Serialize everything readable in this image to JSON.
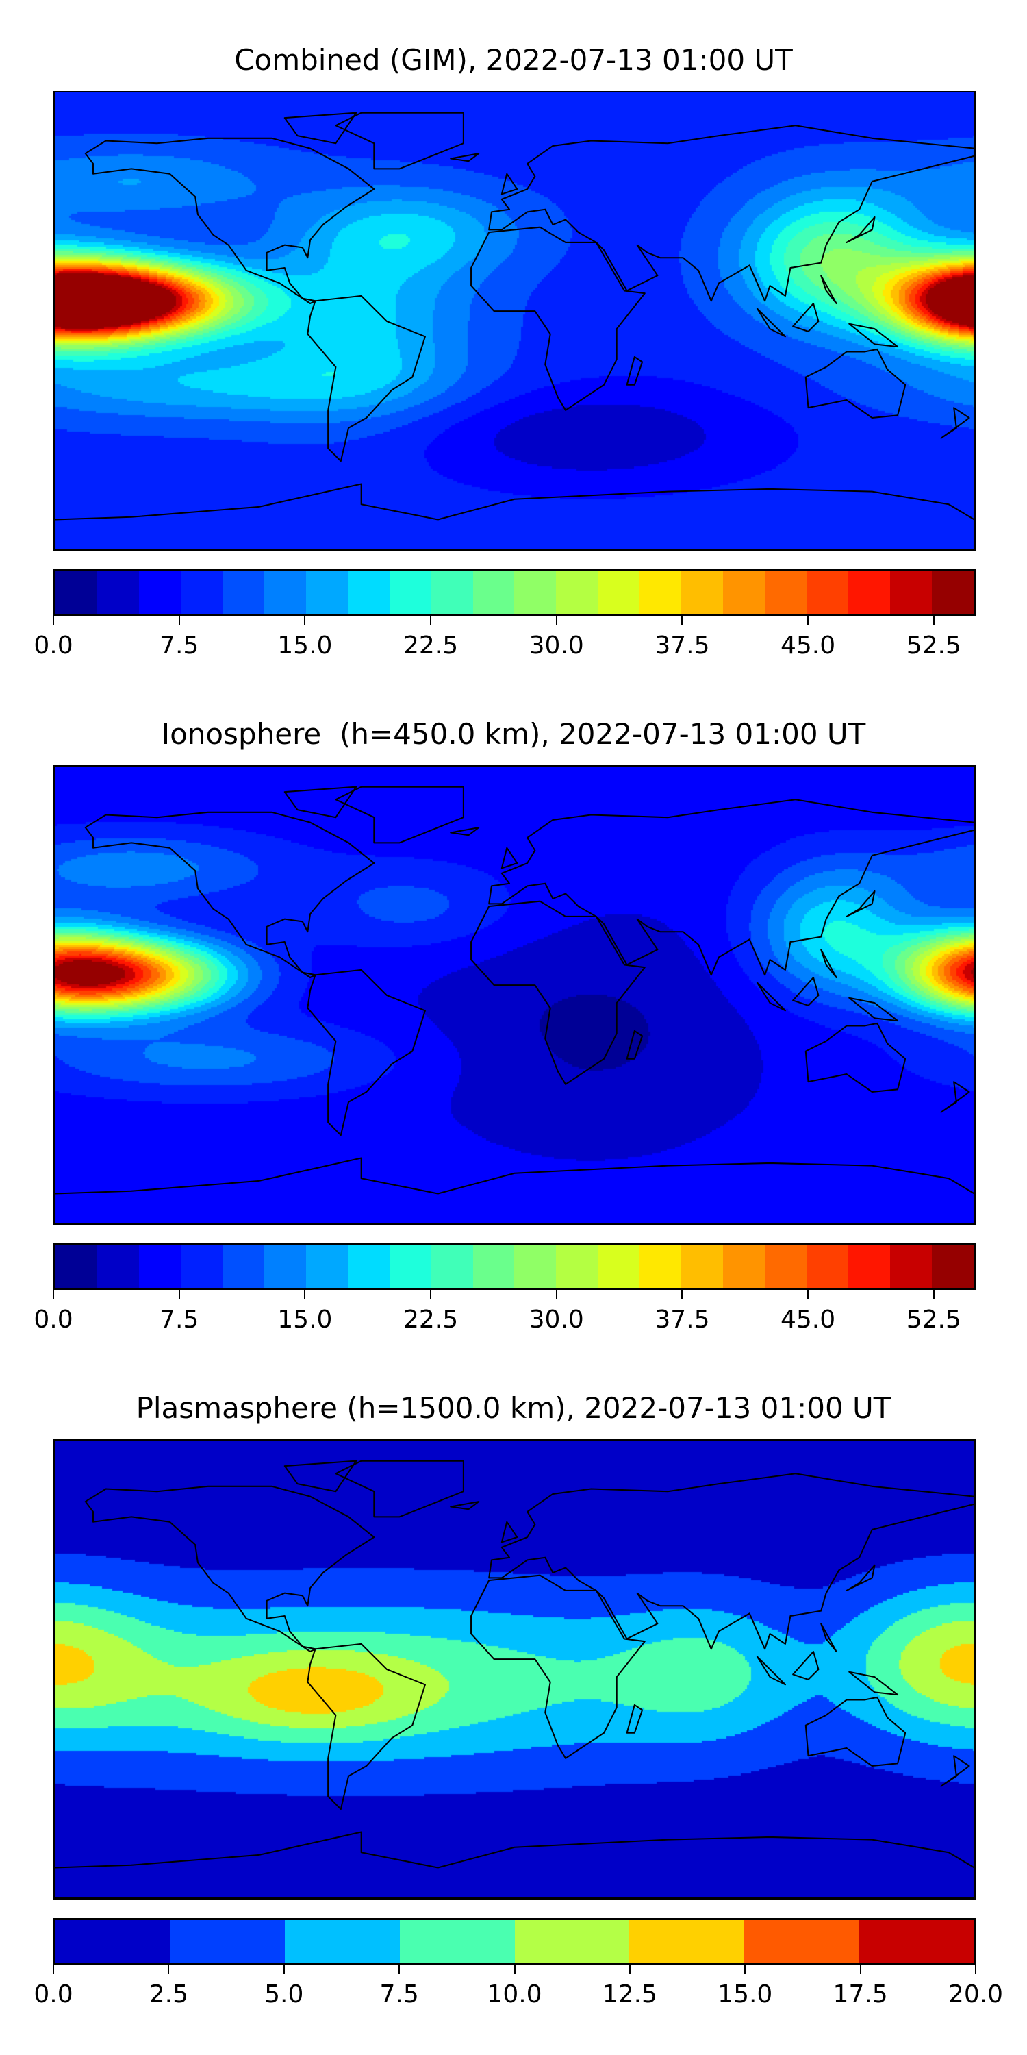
{
  "chart_data": [
    {
      "type": "heatmap",
      "title": "Combined (GIM), 2022-07-13 01:00 UT",
      "projection": "equirectangular",
      "lon_range": [
        -180,
        180
      ],
      "lat_range": [
        -90,
        90
      ],
      "colorbar": {
        "levels_min": 0,
        "levels_max": 55,
        "step": 2.5,
        "ticks": [
          "0.0",
          "7.5",
          "15.0",
          "22.5",
          "30.0",
          "37.5",
          "45.0",
          "52.5"
        ],
        "tick_values": [
          0,
          7.5,
          15,
          22.5,
          30,
          37.5,
          45,
          52.5
        ],
        "colors": [
          "#000096",
          "#0000c8",
          "#0000ff",
          "#0020ff",
          "#0050ff",
          "#0080ff",
          "#00a8ff",
          "#00dcff",
          "#1effdc",
          "#40ffb8",
          "#6aff8c",
          "#90ff66",
          "#b4ff42",
          "#d8ff1e",
          "#ffe800",
          "#ffbe00",
          "#ff9400",
          "#ff6a00",
          "#ff4000",
          "#ff1600",
          "#c80000",
          "#960000"
        ]
      },
      "field_model": {
        "base": 9,
        "components": [
          {
            "lon": -150,
            "lat": 8,
            "sx": 30,
            "sy": 10,
            "amp": 45
          },
          {
            "lon": 180,
            "lat": 8,
            "sx": 24,
            "sy": 12,
            "amp": 38
          },
          {
            "lon": 125,
            "lat": 25,
            "sx": 25,
            "sy": 18,
            "amp": 18
          },
          {
            "lon": -120,
            "lat": -25,
            "sx": 60,
            "sy": 10,
            "amp": 8
          },
          {
            "lon": -60,
            "lat": 0,
            "sx": 30,
            "sy": 25,
            "amp": 9
          },
          {
            "lon": -40,
            "lat": 35,
            "sx": 30,
            "sy": 12,
            "amp": 8
          },
          {
            "lon": 30,
            "lat": -45,
            "sx": 50,
            "sy": 15,
            "amp": -6
          },
          {
            "lon": -150,
            "lat": 55,
            "sx": 40,
            "sy": 10,
            "amp": 6
          }
        ]
      }
    },
    {
      "type": "heatmap",
      "title": "Ionosphere  (h=450.0 km), 2022-07-13 01:00 UT",
      "projection": "equirectangular",
      "lon_range": [
        -180,
        180
      ],
      "lat_range": [
        -90,
        90
      ],
      "colorbar": {
        "levels_min": 0,
        "levels_max": 55,
        "step": 2.5,
        "ticks": [
          "0.0",
          "7.5",
          "15.0",
          "22.5",
          "30.0",
          "37.5",
          "45.0",
          "52.5"
        ],
        "tick_values": [
          0,
          7.5,
          15,
          22.5,
          30,
          37.5,
          45,
          52.5
        ],
        "colors": [
          "#000096",
          "#0000c8",
          "#0000ff",
          "#0020ff",
          "#0050ff",
          "#0080ff",
          "#00a8ff",
          "#00dcff",
          "#1effdc",
          "#40ffb8",
          "#6aff8c",
          "#90ff66",
          "#b4ff42",
          "#d8ff1e",
          "#ffe800",
          "#ffbe00",
          "#ff9400",
          "#ff6a00",
          "#ff4000",
          "#ff1600",
          "#c80000",
          "#960000"
        ]
      },
      "field_model": {
        "base": 6,
        "components": [
          {
            "lon": -150,
            "lat": 8,
            "sx": 28,
            "sy": 10,
            "amp": 34
          },
          {
            "lon": 180,
            "lat": 10,
            "sx": 22,
            "sy": 12,
            "amp": 28
          },
          {
            "lon": 125,
            "lat": 25,
            "sx": 22,
            "sy": 18,
            "amp": 14
          },
          {
            "lon": -120,
            "lat": -25,
            "sx": 50,
            "sy": 10,
            "amp": 7
          },
          {
            "lon": -150,
            "lat": 50,
            "sx": 40,
            "sy": 10,
            "amp": 8
          },
          {
            "lon": 30,
            "lat": -15,
            "sx": 45,
            "sy": 30,
            "amp": -4
          },
          {
            "lon": -40,
            "lat": 35,
            "sx": 30,
            "sy": 12,
            "amp": 5
          }
        ]
      }
    },
    {
      "type": "heatmap",
      "title": "Plasmasphere (h=1500.0 km), 2022-07-13 01:00 UT",
      "projection": "equirectangular",
      "lon_range": [
        -180,
        180
      ],
      "lat_range": [
        -90,
        90
      ],
      "colorbar": {
        "levels_min": 0,
        "levels_max": 20,
        "step": 2.5,
        "ticks": [
          "0.0",
          "2.5",
          "5.0",
          "7.5",
          "10.0",
          "12.5",
          "15.0",
          "17.5",
          "20.0"
        ],
        "tick_values": [
          0,
          2.5,
          5,
          7.5,
          10,
          12.5,
          15,
          17.5,
          20
        ],
        "colors": [
          "#0000c8",
          "#0040ff",
          "#00c0ff",
          "#4affb0",
          "#b4ff46",
          "#ffd000",
          "#ff5a00",
          "#c80000"
        ]
      },
      "field_model": {
        "base": 1,
        "components": [
          {
            "lon": -60,
            "lat": -5,
            "sx": 110,
            "sy": 24,
            "amp": 8.5
          },
          {
            "lon": -80,
            "lat": -10,
            "sx": 30,
            "sy": 12,
            "amp": 5
          },
          {
            "lon": 175,
            "lat": 5,
            "sx": 30,
            "sy": 20,
            "amp": 8
          },
          {
            "lon": 75,
            "lat": 0,
            "sx": 25,
            "sy": 20,
            "amp": 4
          }
        ]
      }
    }
  ]
}
